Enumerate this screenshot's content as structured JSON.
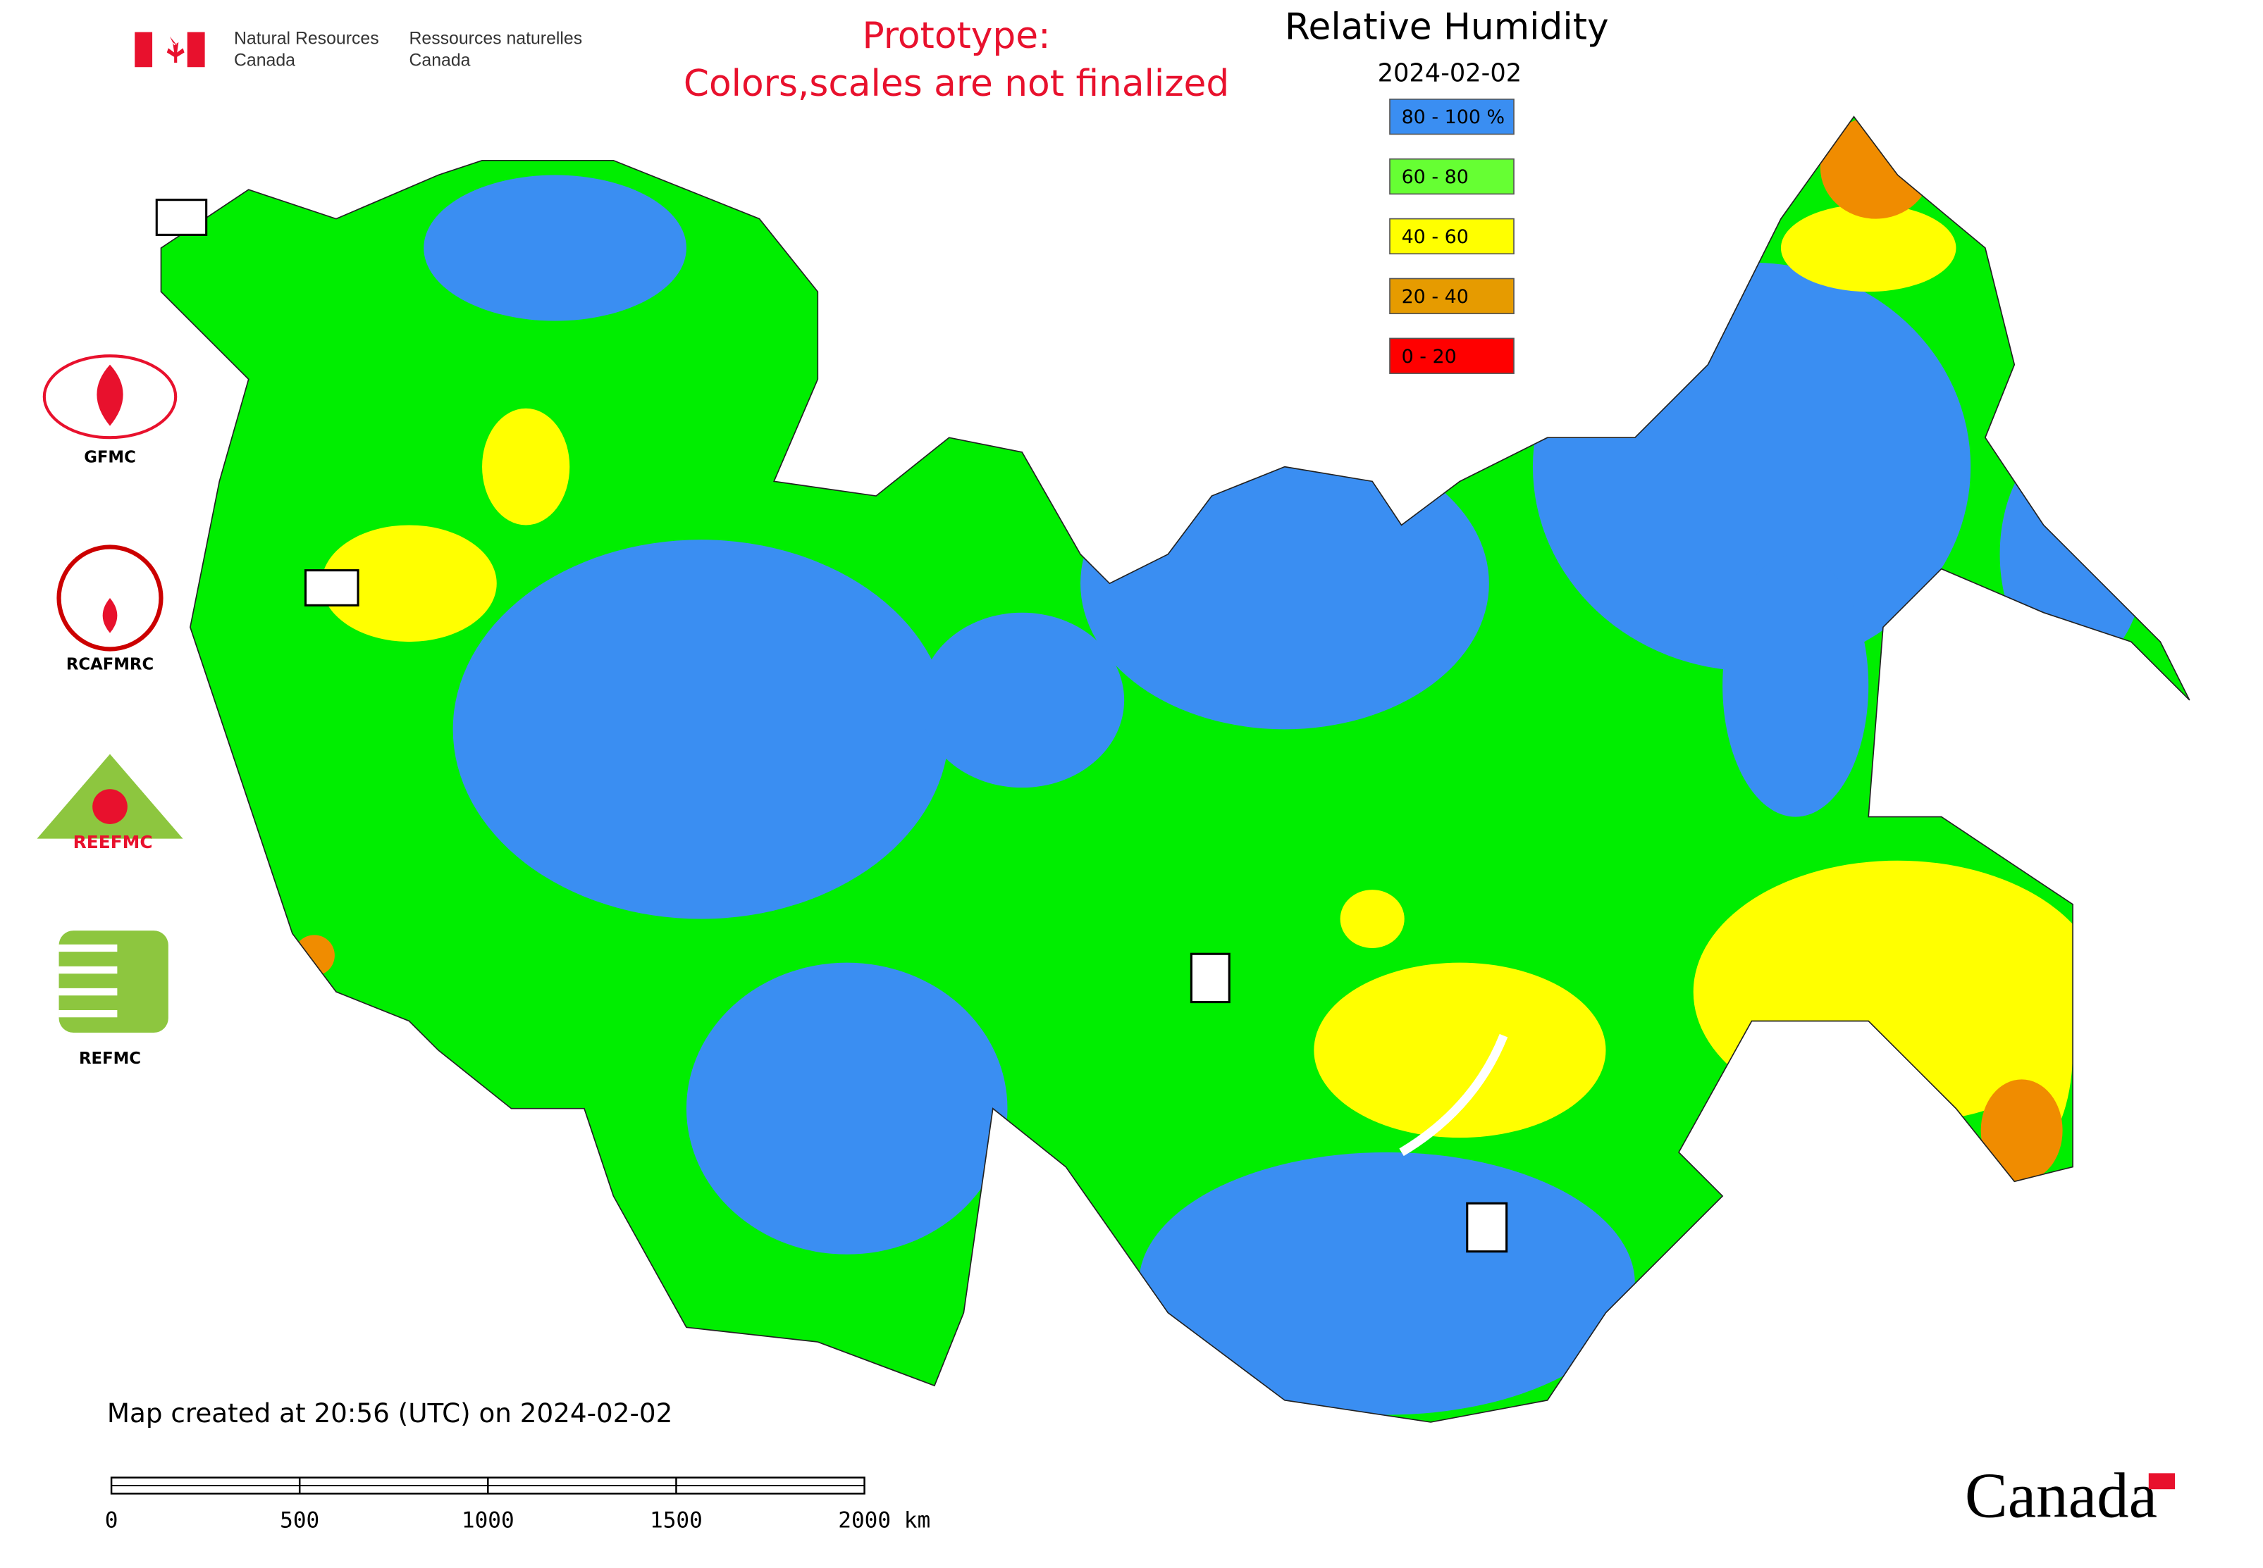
{
  "header": {
    "agency_en": [
      "Natural Resources",
      "Canada"
    ],
    "agency_fr": [
      "Ressources naturelles",
      "Canada"
    ],
    "notice": [
      "Prototype:",
      "Colors,scales are not finalized"
    ]
  },
  "map": {
    "title": "Relative Humidity",
    "date": "2024-02-02",
    "legend": [
      {
        "label": "80 - 100 %",
        "color": "#3a8ef2"
      },
      {
        "label": "60 - 80",
        "color": "#66ff33"
      },
      {
        "label": "40 - 60",
        "color": "#ffff00"
      },
      {
        "label": "20 - 40",
        "color": "#e69b00"
      },
      {
        "label": "0 - 20",
        "color": "#ff0000"
      }
    ],
    "created": "Map created at 20:56 (UTC) on 2024-02-02",
    "scale_bar": [
      "0",
      "500",
      "1000",
      "1500",
      "2000 km"
    ],
    "partners": [
      "GFMC",
      "RCAFMRC",
      "REEFMC",
      "REFMC"
    ],
    "wordmark": "Canada"
  }
}
